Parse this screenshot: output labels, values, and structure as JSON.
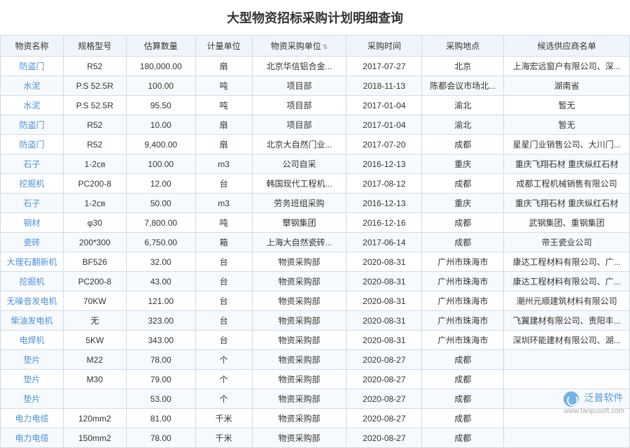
{
  "title": "大型物资招标采购计划明细查询",
  "columns": [
    {
      "label": "物资名称",
      "width": "10%"
    },
    {
      "label": "规格型号",
      "width": "10%"
    },
    {
      "label": "估算数量",
      "width": "11%"
    },
    {
      "label": "计量单位",
      "width": "9%"
    },
    {
      "label": "物资采购单位",
      "width": "15%",
      "sortable": true
    },
    {
      "label": "采购时间",
      "width": "12%"
    },
    {
      "label": "采购地点",
      "width": "13%"
    },
    {
      "label": "候选供应商名单",
      "width": "20%"
    }
  ],
  "link_col": 0,
  "rows": [
    [
      "防盗门",
      "R52",
      "180,000.00",
      "扇",
      "北京华信铝合金...",
      "2017-07-27",
      "北京",
      "上海宏远窗户有限公司、深..."
    ],
    [
      "水泥",
      "P.S 52.5R",
      "100.00",
      "吨",
      "项目部",
      "2018-11-13",
      "陈都会议市场北...",
      "湖南省"
    ],
    [
      "水泥",
      "P.S 52.5R",
      "95.50",
      "吨",
      "项目部",
      "2017-01-04",
      "渝北",
      "暂无"
    ],
    [
      "防盗门",
      "R52",
      "10.00",
      "扇",
      "项目部",
      "2017-01-04",
      "渝北",
      "暂无"
    ],
    [
      "防盗门",
      "R52",
      "9,400.00",
      "扇",
      "北京大自然门业...",
      "2017-07-20",
      "成都",
      "星星门业销售公司、大川门..."
    ],
    [
      "石子",
      "1-2㎝",
      "100.00",
      "m3",
      "公司自采",
      "2016-12-13",
      "重庆",
      "重庆飞翔石材 重庆纵红石材"
    ],
    [
      "挖掘机",
      "PC200-8",
      "12.00",
      "台",
      "韩国现代工程机...",
      "2017-08-12",
      "成都",
      "成都工程机械销售有限公司"
    ],
    [
      "石子",
      "1-2㎝",
      "50.00",
      "m3",
      "劳务班组采购",
      "2016-12-13",
      "重庆",
      "重庆飞翔石材 重庆纵红石材"
    ],
    [
      "钢材",
      "φ30",
      "7,800.00",
      "吨",
      "攀钢集团",
      "2016-12-16",
      "成都",
      "武钢集团、重钢集团"
    ],
    [
      "瓷砖",
      "200*300",
      "6,750.00",
      "箱",
      "上海大自然瓷砖...",
      "2017-06-14",
      "成都",
      "帝王瓷业公司"
    ],
    [
      "大理石翻新机",
      "BF526",
      "32.00",
      "台",
      "物资采购部",
      "2020-08-31",
      "广州市珠海市",
      "康达工程材料有限公司、广..."
    ],
    [
      "挖掘机",
      "PC200-8",
      "43.00",
      "台",
      "物资采购部",
      "2020-08-31",
      "广州市珠海市",
      "康达工程材料有限公司、广..."
    ],
    [
      "无噪音发电机",
      "70KW",
      "121.00",
      "台",
      "物资采购部",
      "2020-08-31",
      "广州市珠海市",
      "潮州元顺建筑材料有限公司"
    ],
    [
      "柴油发电机",
      "无",
      "323.00",
      "台",
      "物资采购部",
      "2020-08-31",
      "广州市珠海市",
      "飞翼建材有限公司、贵阳丰..."
    ],
    [
      "电焊机",
      "5KW",
      "343.00",
      "台",
      "物资采购部",
      "2020-08-31",
      "广州市珠海市",
      "深圳环能建材有限公司、湖..."
    ],
    [
      "垫片",
      "M22",
      "78.00",
      "个",
      "物资采购部",
      "2020-08-27",
      "成都",
      ""
    ],
    [
      "垫片",
      "M30",
      "79.00",
      "个",
      "物资采购部",
      "2020-08-27",
      "成都",
      ""
    ],
    [
      "垫片",
      "",
      "53.00",
      "个",
      "物资采购部",
      "2020-08-27",
      "成都",
      ""
    ],
    [
      "电力电缆",
      "120mm2",
      "81.00",
      "千米",
      "物资采购部",
      "2020-08-27",
      "成都",
      ""
    ],
    [
      "电力电缆",
      "150mm2",
      "78.00",
      "千米",
      "物资采购部",
      "2020-08-27",
      "成都",
      ""
    ]
  ],
  "watermark": {
    "brand": "泛普软件",
    "url": "www.fanpusoft.com"
  },
  "colors": {
    "header_bg": "#f0f5fb",
    "border": "#d0dce8",
    "alt_row": "#f7fafd",
    "link": "#4a90d9"
  }
}
